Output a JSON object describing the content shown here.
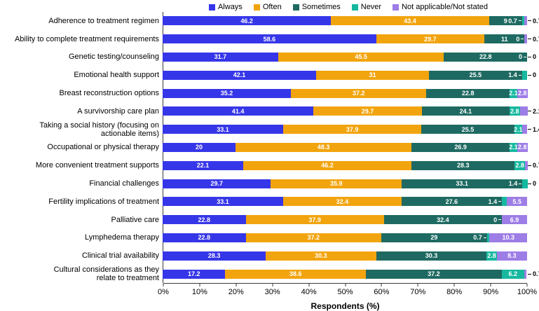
{
  "chart_data": {
    "type": "bar",
    "orientation": "horizontal",
    "stacked": true,
    "unit": "%",
    "title": "",
    "xlabel": "Respondents (%)",
    "ylabel": "",
    "xlim": [
      0,
      100
    ],
    "x_tick_labels": [
      "0%",
      "10%",
      "20%",
      "30%",
      "40%",
      "50%",
      "60%",
      "70%",
      "80%",
      "90%",
      "100%"
    ],
    "legend_position": "top",
    "grid": false,
    "categories": [
      "Adherence to treatment regimen",
      "Ability to complete treatment requirements",
      "Genetic testing/counseling",
      "Emotional health support",
      "Breast reconstruction options",
      "A survivorship care plan",
      "Taking a social history (focusing on\nactionable items)",
      "Occupational or physical therapy",
      "More convenient treatment supports",
      "Financial challenges",
      "Fertility implications of treatment",
      "Palliative care",
      "Lymphedema therapy",
      "Clinical trial availability",
      "Cultural considerations as they\nrelate to treatment"
    ],
    "series": [
      {
        "name": "Always",
        "color": "#3636e9",
        "values": [
          46.2,
          58.6,
          31.7,
          42.1,
          35.2,
          41.4,
          33.1,
          20,
          22.1,
          29.7,
          33.1,
          22.8,
          22.8,
          28.3,
          17.2
        ]
      },
      {
        "name": "Often",
        "color": "#f2a40e",
        "values": [
          43.4,
          29.7,
          45.5,
          31,
          37.2,
          29.7,
          37.9,
          48.3,
          46.2,
          35.9,
          32.4,
          37.9,
          37.2,
          30.3,
          38.6
        ]
      },
      {
        "name": "Sometimes",
        "color": "#1e6a62",
        "values": [
          9,
          11,
          22.8,
          25.5,
          22.8,
          24.1,
          25.5,
          26.9,
          28.3,
          33.1,
          27.6,
          32.4,
          29,
          30.3,
          37.2
        ]
      },
      {
        "name": "Never",
        "color": "#16b99f",
        "values": [
          0.7,
          0,
          0,
          1.4,
          2.1,
          2.8,
          2.1,
          2.1,
          2.8,
          1.4,
          1.4,
          0,
          0.7,
          2.8,
          6.2
        ]
      },
      {
        "name": "Not applicable/Not stated",
        "color": "#9d7de6",
        "values": [
          0.7,
          0.7,
          0,
          0,
          2.8,
          2.1,
          1.4,
          2.8,
          0.7,
          0,
          5.5,
          6.9,
          10.3,
          8.3,
          0.7
        ]
      }
    ]
  }
}
